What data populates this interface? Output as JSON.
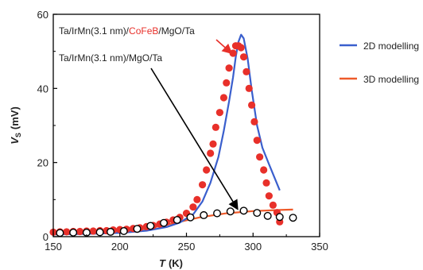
{
  "chart_data": {
    "type": "scatter",
    "xlabel": "T (K)",
    "xlabel_italic": "T",
    "xlabel_unit": "(K)",
    "ylabel": "V_S (mV)",
    "ylabel_main": "V",
    "ylabel_sub": "S",
    "ylabel_unit": "(mV)",
    "xlim": [
      150,
      350
    ],
    "ylim": [
      0,
      60
    ],
    "x_ticks": [
      150,
      200,
      250,
      300,
      350
    ],
    "y_ticks": [
      0,
      20,
      40,
      60
    ],
    "grid": false,
    "legend_placement": "outside-right",
    "annotations": {
      "cofeb_stack": {
        "part1": "Ta/IrMn(3.1 nm)/",
        "part2": "CoFeB",
        "part3": "/MgO/Ta",
        "part2_color": "#e8302a"
      },
      "mgo_stack": {
        "text": "Ta/IrMn(3.1 nm)/MgO/Ta"
      }
    },
    "legend": [
      {
        "label": "2D modelling",
        "color": "#3a5fcd"
      },
      {
        "label": "3D modelling",
        "color": "#ee5a2a"
      }
    ],
    "series": [
      {
        "marker": "filled-circle",
        "color": "#e8302a",
        "x": [
          150,
          155,
          160,
          165,
          170,
          175,
          180,
          185,
          190,
          195,
          200,
          205,
          210,
          215,
          220,
          225,
          230,
          235,
          240,
          245,
          250,
          255,
          258,
          262,
          265,
          268,
          270,
          272,
          275,
          278,
          280,
          282,
          285,
          287,
          289,
          291,
          293,
          295,
          297,
          299,
          301,
          303,
          305,
          308,
          310,
          312,
          315,
          318,
          320
        ],
        "y": [
          1.2,
          1.3,
          1.3,
          1.4,
          1.4,
          1.5,
          1.5,
          1.6,
          1.6,
          1.8,
          1.9,
          2.0,
          2.2,
          2.4,
          2.7,
          3.0,
          3.4,
          3.9,
          4.5,
          5.2,
          6.3,
          8.0,
          10.0,
          14.0,
          18.0,
          22.5,
          25.0,
          29.5,
          33.5,
          37.5,
          41.5,
          45.5,
          49.5,
          51.5,
          51.5,
          51.0,
          48.5,
          44.5,
          40.0,
          35.5,
          31.0,
          26.0,
          21.5,
          18.0,
          14.5,
          11.0,
          8.5,
          6.5,
          4.0
        ]
      },
      {
        "marker": "open-circle",
        "color": "#000000",
        "x": [
          155,
          165,
          175,
          185,
          193,
          203,
          213,
          223,
          233,
          243,
          253,
          263,
          273,
          283,
          293,
          303,
          311,
          320,
          330
        ],
        "y": [
          1.0,
          1.1,
          1.1,
          1.2,
          1.3,
          1.5,
          2.1,
          2.9,
          3.7,
          4.5,
          5.2,
          5.8,
          6.3,
          6.8,
          7.0,
          6.4,
          5.6,
          5.3,
          5.1
        ]
      },
      {
        "name": "2D modelling",
        "marker": "line",
        "color": "#3a5fcd",
        "x": [
          150,
          180,
          200,
          220,
          235,
          245,
          255,
          262,
          268,
          274,
          278,
          282,
          285,
          287,
          289,
          291,
          293,
          296,
          299,
          303,
          307,
          312,
          316,
          320
        ],
        "y": [
          0.6,
          0.8,
          1.0,
          1.6,
          2.6,
          3.8,
          6.0,
          9.5,
          14.5,
          21.5,
          28.5,
          36.5,
          43.0,
          48.5,
          52.5,
          54.5,
          53.5,
          48.0,
          39.5,
          30.0,
          24.0,
          19.5,
          16.0,
          12.5
        ]
      },
      {
        "name": "3D modelling",
        "marker": "line",
        "color": "#ee5a2a",
        "x": [
          150,
          180,
          200,
          220,
          240,
          260,
          280,
          300,
          320,
          330
        ],
        "y": [
          0.6,
          0.8,
          1.2,
          2.1,
          3.6,
          5.2,
          6.3,
          6.9,
          7.2,
          7.3
        ]
      }
    ]
  }
}
